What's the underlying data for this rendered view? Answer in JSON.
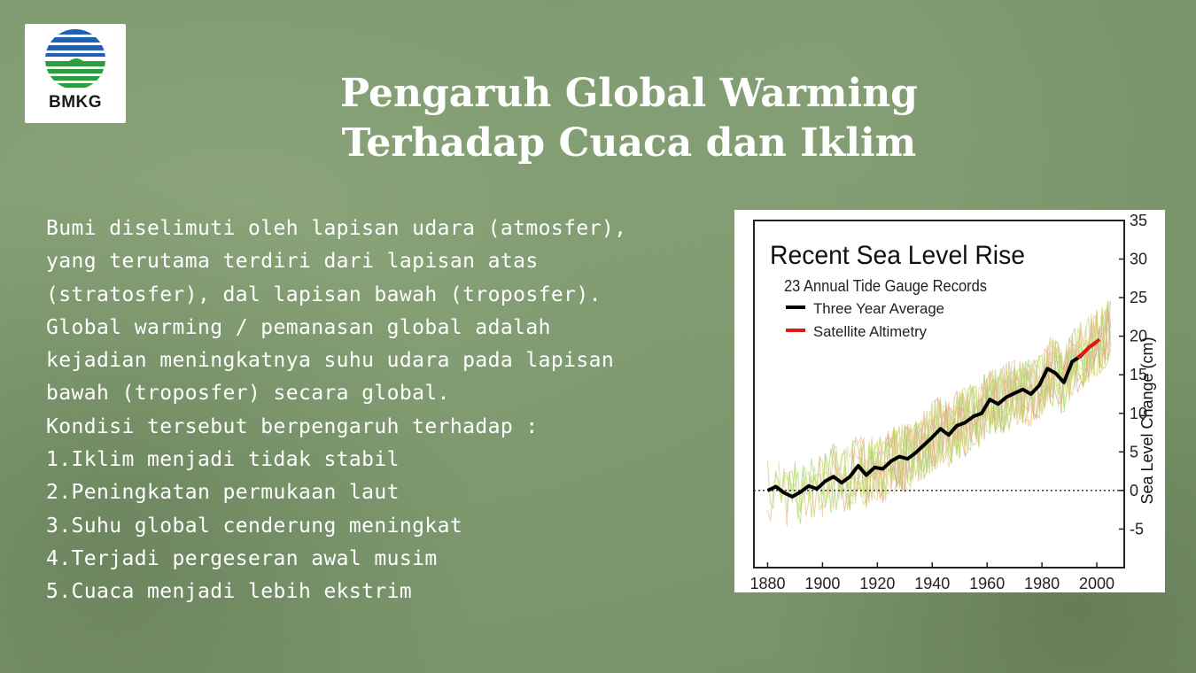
{
  "logo": {
    "text": "BMKG",
    "colors": {
      "blue": "#1f5fb4",
      "green": "#2e9d3f"
    }
  },
  "title": {
    "line1": "Pengaruh Global Warming",
    "line2": "Terhadap Cuaca dan Iklim"
  },
  "body": {
    "lines": [
      "Bumi diselimuti oleh lapisan udara (atmosfer),",
      "yang terutama terdiri dari lapisan atas",
      "(stratosfer), dal lapisan bawah (troposfer).",
      "Global warming / pemanasan global adalah",
      "kejadian meningkatnya suhu udara pada lapisan",
      "bawah (troposfer) secara global.",
      "Kondisi tersebut berpengaruh terhadap :",
      "1.Iklim menjadi tidak stabil",
      "2.Peningkatan permukaan laut",
      "3.Suhu global cenderung meningkat",
      "4.Terjadi pergeseran awal musim",
      "5.Cuaca menjadi lebih ekstrim"
    ]
  },
  "chart_data": {
    "type": "line",
    "title": "Recent Sea Level Rise",
    "subtitle": "23 Annual Tide Gauge Records",
    "ylabel": "Sea Level Change (cm)",
    "xlabel": "",
    "xlim": [
      1875,
      2010
    ],
    "ylim": [
      -10,
      35
    ],
    "x_ticks": [
      1880,
      1900,
      1920,
      1940,
      1960,
      1980,
      2000
    ],
    "y_ticks": [
      -5,
      0,
      5,
      10,
      15,
      20,
      25,
      30,
      35
    ],
    "legend_position": "top-left",
    "series": [
      {
        "name": "Three Year Average",
        "color": "#000000",
        "x": [
          1880,
          1883,
          1886,
          1889,
          1892,
          1895,
          1898,
          1901,
          1904,
          1907,
          1910,
          1913,
          1916,
          1919,
          1922,
          1925,
          1928,
          1931,
          1934,
          1937,
          1940,
          1943,
          1946,
          1949,
          1952,
          1955,
          1958,
          1961,
          1964,
          1967,
          1970,
          1973,
          1976,
          1979,
          1982,
          1985,
          1988,
          1991,
          1994,
          1997,
          2000
        ],
        "y": [
          0,
          0.5,
          -0.3,
          -0.8,
          -0.2,
          0.6,
          0.2,
          1.2,
          1.8,
          1.0,
          1.8,
          3.2,
          2.0,
          3.0,
          2.8,
          3.8,
          4.4,
          4.1,
          4.9,
          5.9,
          6.9,
          8.0,
          7.2,
          8.4,
          8.8,
          9.6,
          10.0,
          11.8,
          11.2,
          12.1,
          12.6,
          13.1,
          12.5,
          13.6,
          15.8,
          15.2,
          14.0,
          16.7,
          17.4,
          18.5,
          19.3
        ]
      },
      {
        "name": "Satellite Altimetry",
        "color": "#e01818",
        "x": [
          1993,
          1995,
          1997,
          1999,
          2001
        ],
        "y": [
          17.2,
          17.8,
          18.5,
          19.0,
          19.6
        ]
      },
      {
        "name": "Tide gauge records",
        "color": "#c8d860",
        "values_note": ""
      }
    ]
  }
}
